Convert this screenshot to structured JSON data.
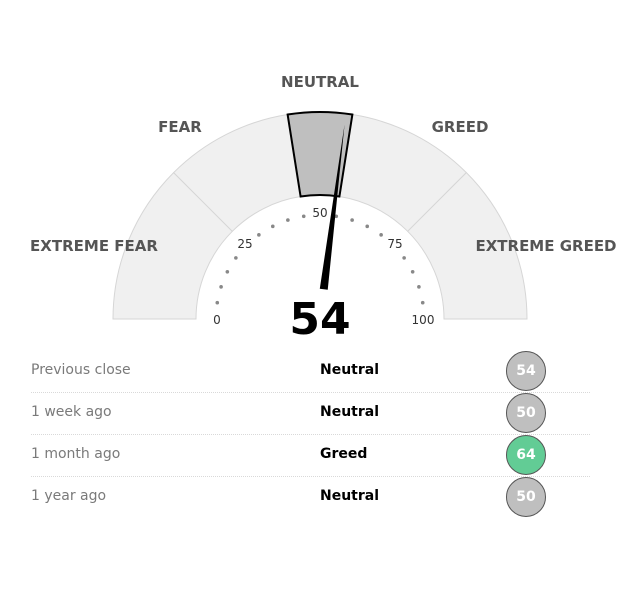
{
  "gauge": {
    "score": 54,
    "zones": [
      {
        "label": "EXTREME FEAR",
        "min": 0,
        "max": 25
      },
      {
        "label": "FEAR",
        "min": 25,
        "max": 45
      },
      {
        "label": "NEUTRAL",
        "min": 45,
        "max": 55
      },
      {
        "label": "GREED",
        "min": 55,
        "max": 75
      },
      {
        "label": "EXTREME GREED",
        "min": 75,
        "max": 100
      }
    ],
    "ticks": [
      "0",
      "25",
      "50",
      "75",
      "100"
    ],
    "colors": {
      "zone_fill": "#f0f0f0",
      "active_zone_fill": "#bfbfbf",
      "needle": "#000000"
    }
  },
  "history": [
    {
      "label": "Previous close",
      "rating": "Neutral",
      "value": "54",
      "color": "#bfbfbf"
    },
    {
      "label": "1 week ago",
      "rating": "Neutral",
      "value": "50",
      "color": "#bfbfbf"
    },
    {
      "label": "1 month ago",
      "rating": "Greed",
      "value": "64",
      "color": "#62cc95"
    },
    {
      "label": "1 year ago",
      "rating": "Neutral",
      "value": "50",
      "color": "#bfbfbf"
    }
  ]
}
